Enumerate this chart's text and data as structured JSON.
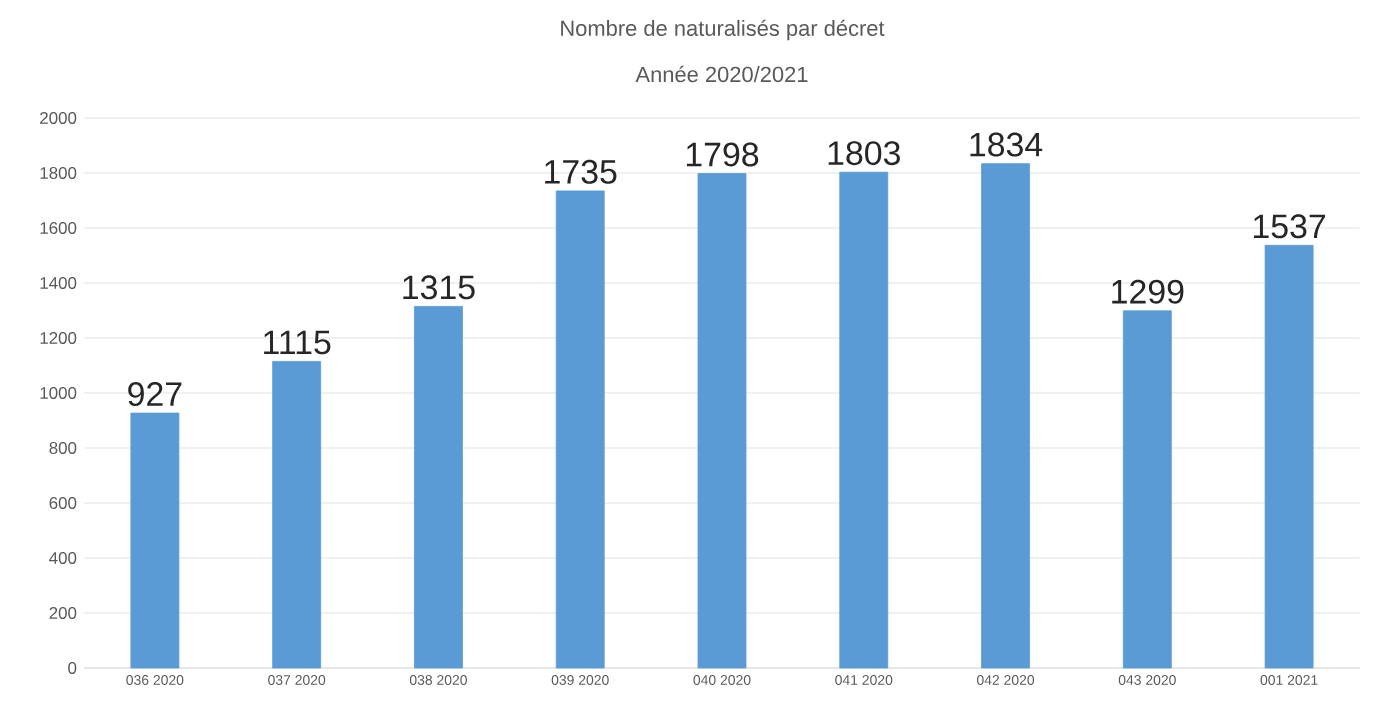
{
  "chart_data": {
    "type": "bar",
    "title": "Nombre de naturalisés par décret",
    "subtitle": "Année 2020/2021",
    "categories": [
      "036 2020",
      "037 2020",
      "038 2020",
      "039 2020",
      "040 2020",
      "041 2020",
      "042 2020",
      "043 2020",
      "001 2021"
    ],
    "values": [
      927,
      1115,
      1315,
      1735,
      1798,
      1803,
      1834,
      1299,
      1537
    ],
    "color": "#5b9bd5",
    "ylim": [
      0,
      2000
    ],
    "yticks": [
      0,
      200,
      400,
      600,
      800,
      1000,
      1200,
      1400,
      1600,
      1800,
      2000
    ],
    "grid": "y",
    "data_labels": true
  }
}
